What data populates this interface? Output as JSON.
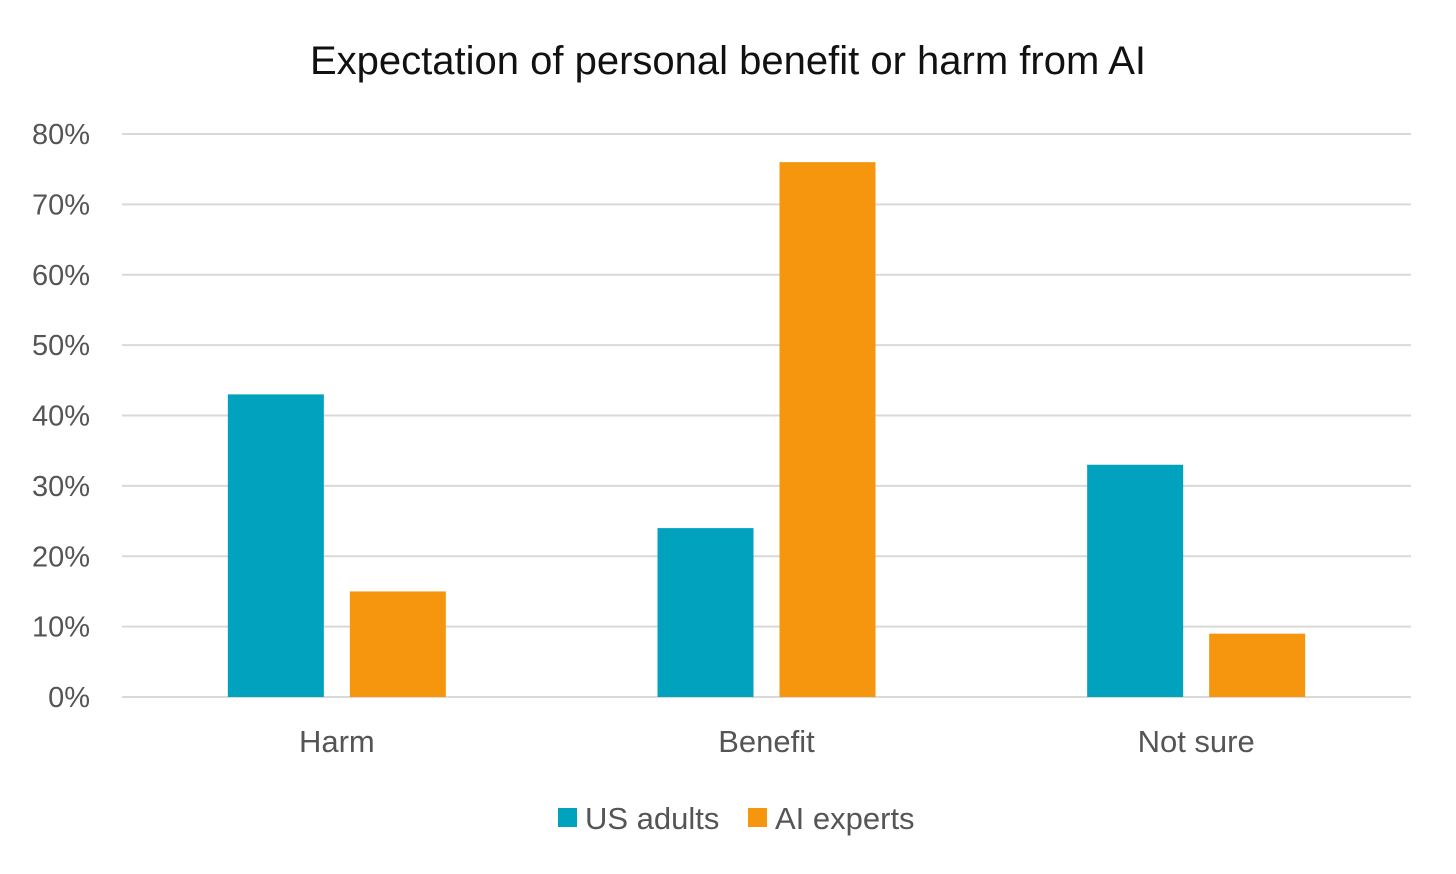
{
  "chart_data": {
    "type": "bar",
    "title": "Expectation of personal benefit or harm from AI",
    "xlabel": "",
    "ylabel": "",
    "categories": [
      "Harm",
      "Benefit",
      "Not sure"
    ],
    "series": [
      {
        "name": "US adults",
        "values": [
          43,
          24,
          33
        ],
        "color": "#00a2bd"
      },
      {
        "name": "AI experts",
        "values": [
          15,
          76,
          9
        ],
        "color": "#f5960e"
      }
    ],
    "ylim": [
      0,
      80
    ],
    "y_ticks": [
      0,
      10,
      20,
      30,
      40,
      50,
      60,
      70,
      80
    ],
    "y_tick_labels": [
      "0%",
      "10%",
      "20%",
      "30%",
      "40%",
      "50%",
      "60%",
      "70%",
      "80%"
    ],
    "grid": true,
    "legend_position": "bottom"
  }
}
